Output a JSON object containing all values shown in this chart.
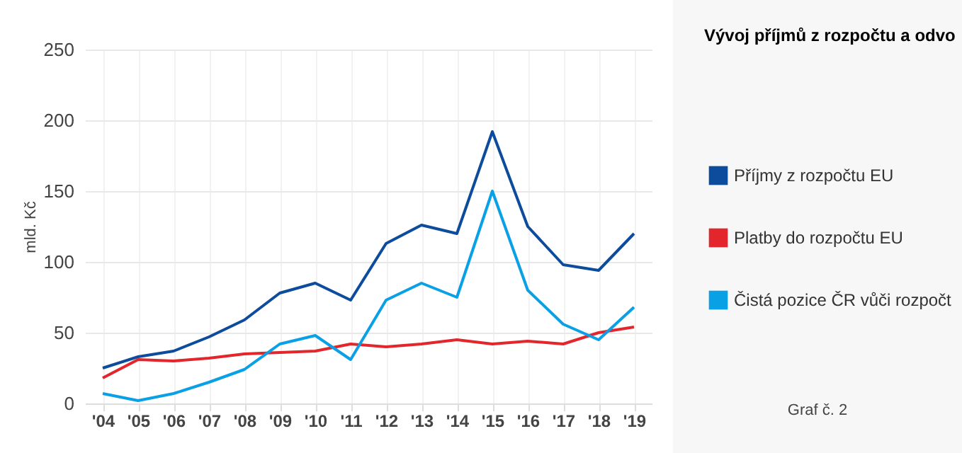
{
  "chart_data": {
    "type": "line",
    "title": "Vývoj příjmů z rozpočtu a odvo",
    "ylabel": "mld. Kč",
    "categories": [
      "'04",
      "'05",
      "'06",
      "'07",
      "'08",
      "'09",
      "'10",
      "'11",
      "'12",
      "'13",
      "'14",
      "'15",
      "'16",
      "'17",
      "'18",
      "'19"
    ],
    "series": [
      {
        "name": "Příjmy z rozpočtu EU",
        "color": "#0d4c9c",
        "values": [
          25,
          33,
          37,
          47,
          59,
          78,
          85,
          73,
          113,
          126,
          120,
          192,
          125,
          98,
          94,
          120
        ]
      },
      {
        "name": "Platby do rozpočtu EU",
        "color": "#e2262b",
        "values": [
          18,
          31,
          30,
          32,
          35,
          36,
          37,
          42,
          40,
          42,
          45,
          42,
          44,
          42,
          50,
          54
        ]
      },
      {
        "name": "Čistá pozice ČR vůči rozpočt",
        "color": "#0aa0e6",
        "values": [
          7,
          2,
          7,
          15,
          24,
          42,
          48,
          31,
          73,
          85,
          75,
          150,
          80,
          56,
          45,
          68
        ]
      }
    ],
    "ylim": [
      0,
      250
    ],
    "yticks": [
      0,
      50,
      100,
      150,
      200,
      250
    ],
    "grid": true,
    "legend": "right",
    "marker": "none",
    "line_style": "solid",
    "annotations": [
      "Graf č. 2"
    ]
  }
}
